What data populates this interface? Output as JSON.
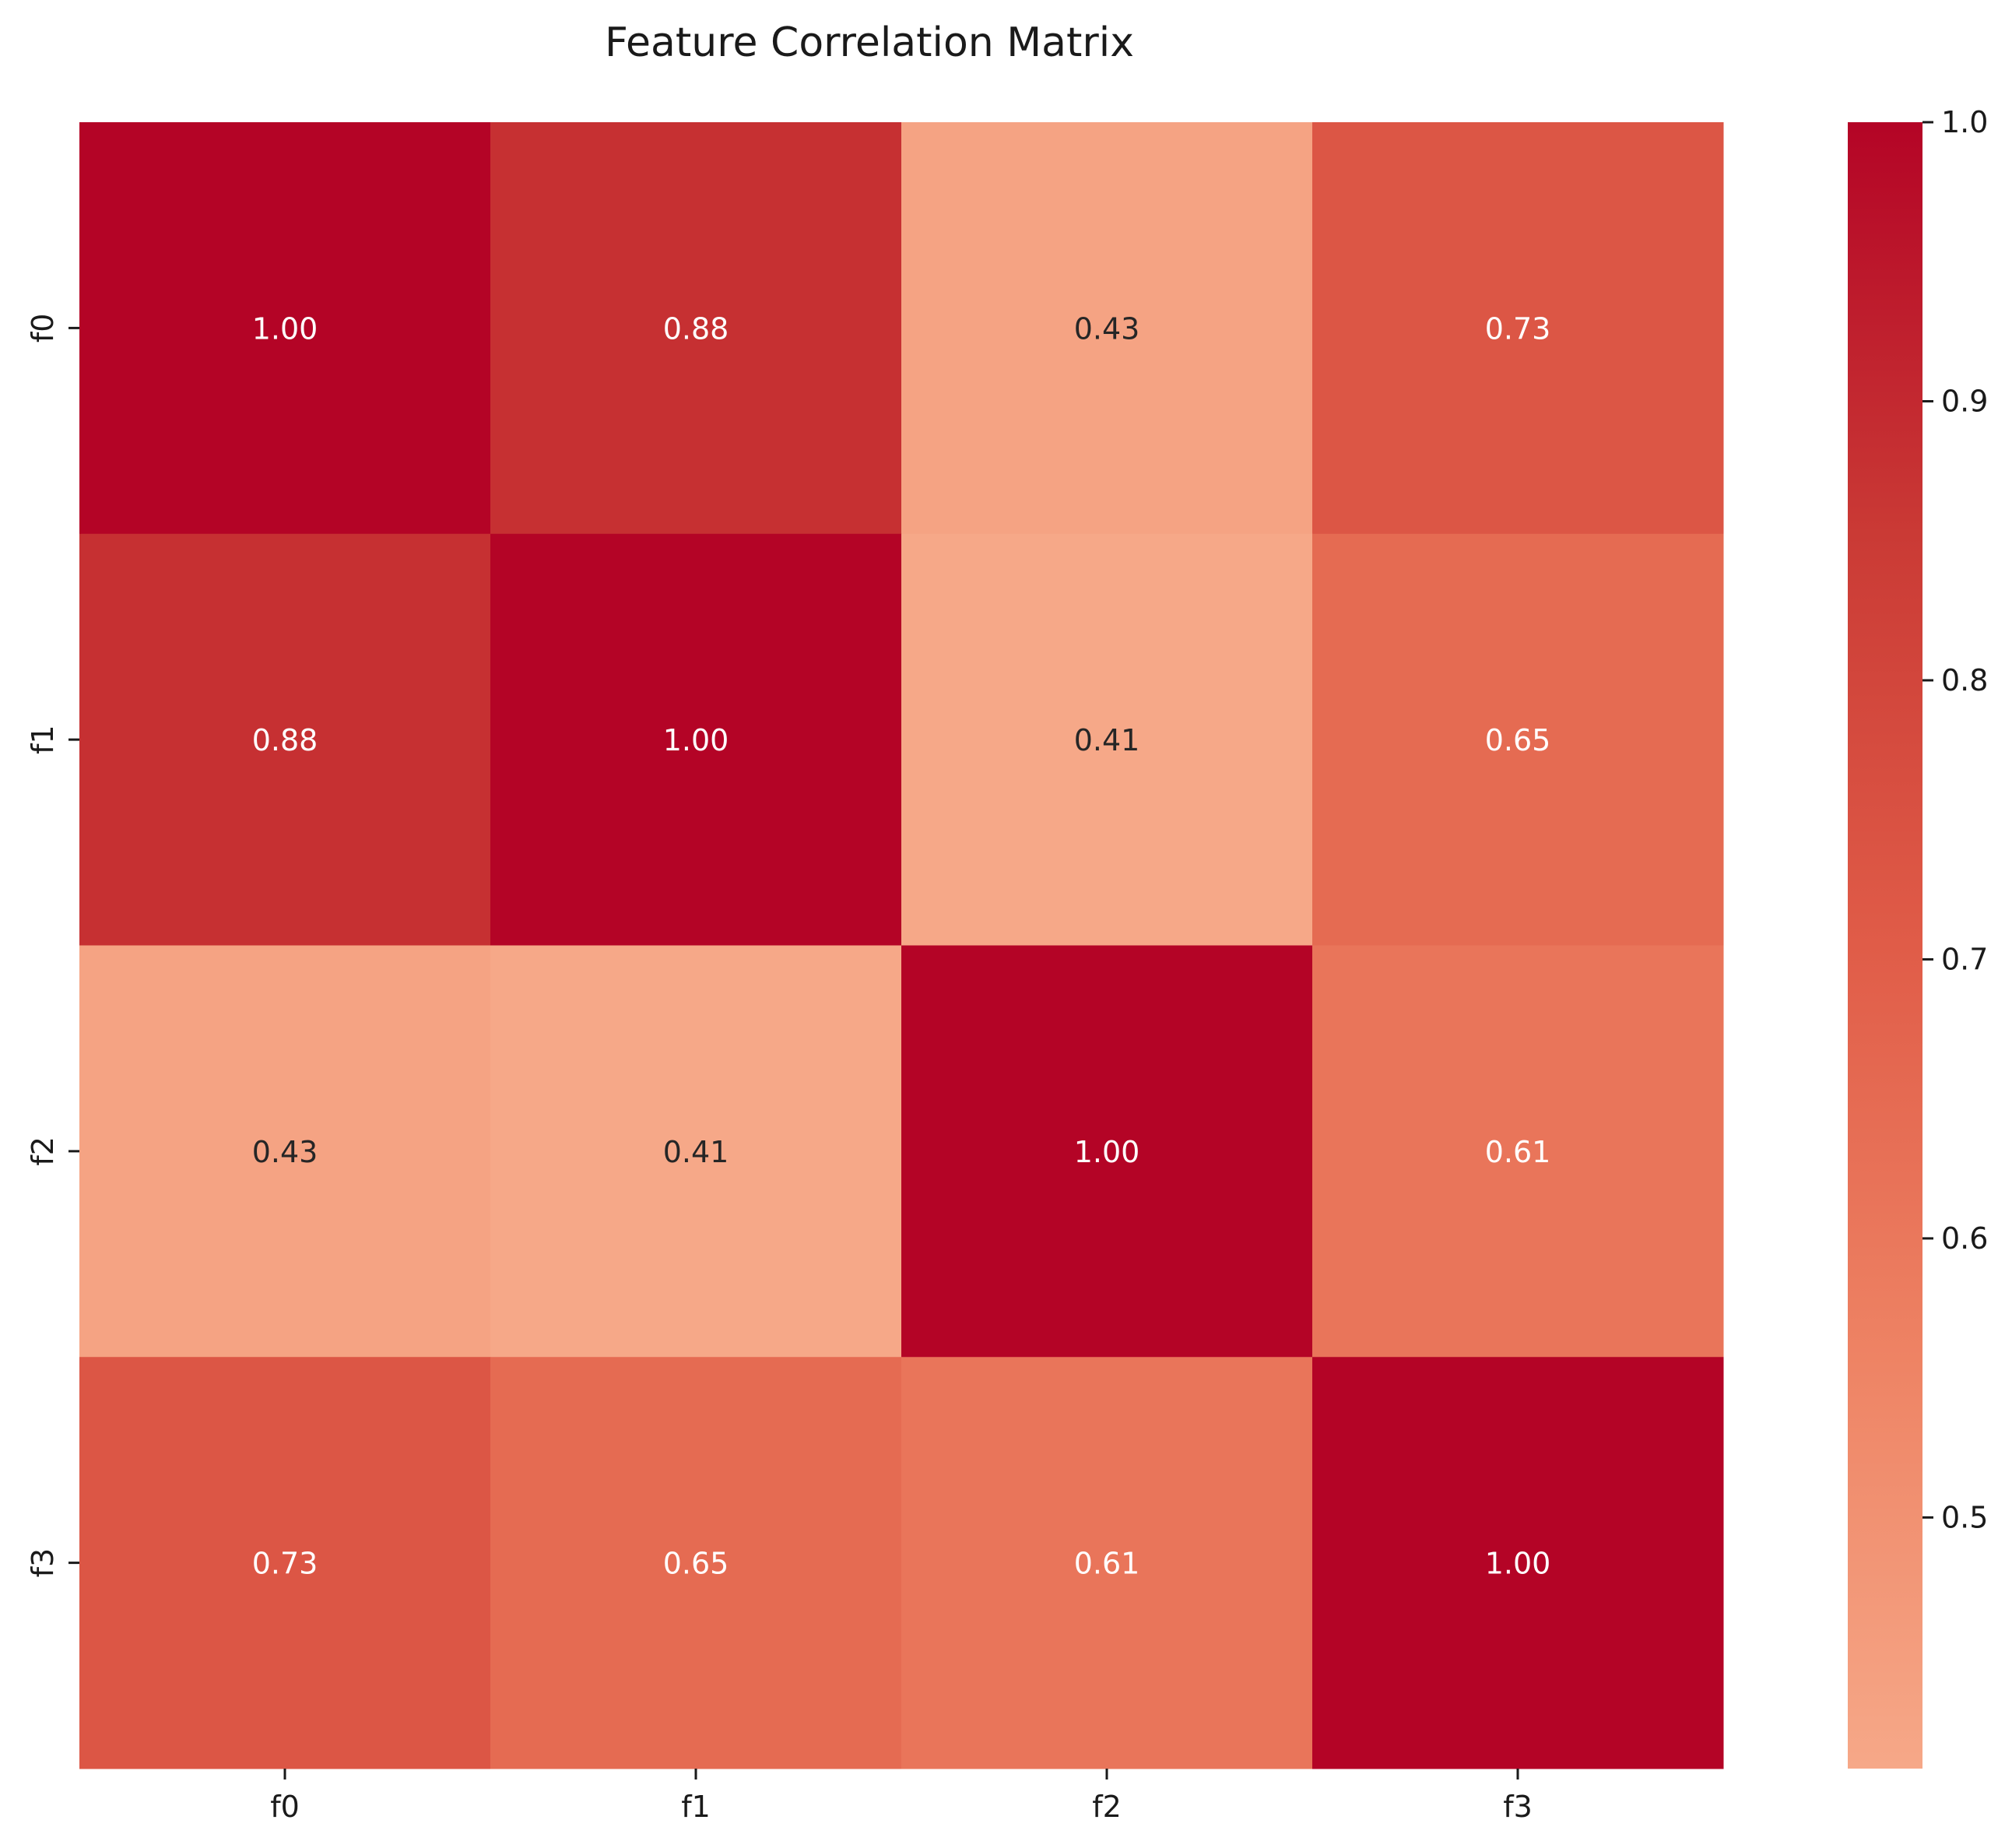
{
  "chart_data": {
    "type": "heatmap",
    "title": "Feature Correlation Matrix",
    "xlabel": "",
    "ylabel": "",
    "x_categories": [
      "f0",
      "f1",
      "f2",
      "f3"
    ],
    "y_categories": [
      "f0",
      "f1",
      "f2",
      "f3"
    ],
    "values": [
      [
        1.0,
        0.88,
        0.43,
        0.73
      ],
      [
        0.88,
        1.0,
        0.41,
        0.65
      ],
      [
        0.43,
        0.41,
        1.0,
        0.61
      ],
      [
        0.73,
        0.65,
        0.61,
        1.0
      ]
    ],
    "value_format": "0.00",
    "colorbar": {
      "min": 0.41,
      "max": 1.0,
      "ticks": [
        "0.5",
        "0.6",
        "0.7",
        "0.8",
        "0.9",
        "1.0"
      ],
      "colors": [
        "#f6a888",
        "#ee8364",
        "#e05c48",
        "#ca3a35",
        "#b40426"
      ],
      "placement": "right"
    },
    "text_colors": {
      "light": "#ffffff",
      "dark": "#262626"
    },
    "grid": false
  }
}
